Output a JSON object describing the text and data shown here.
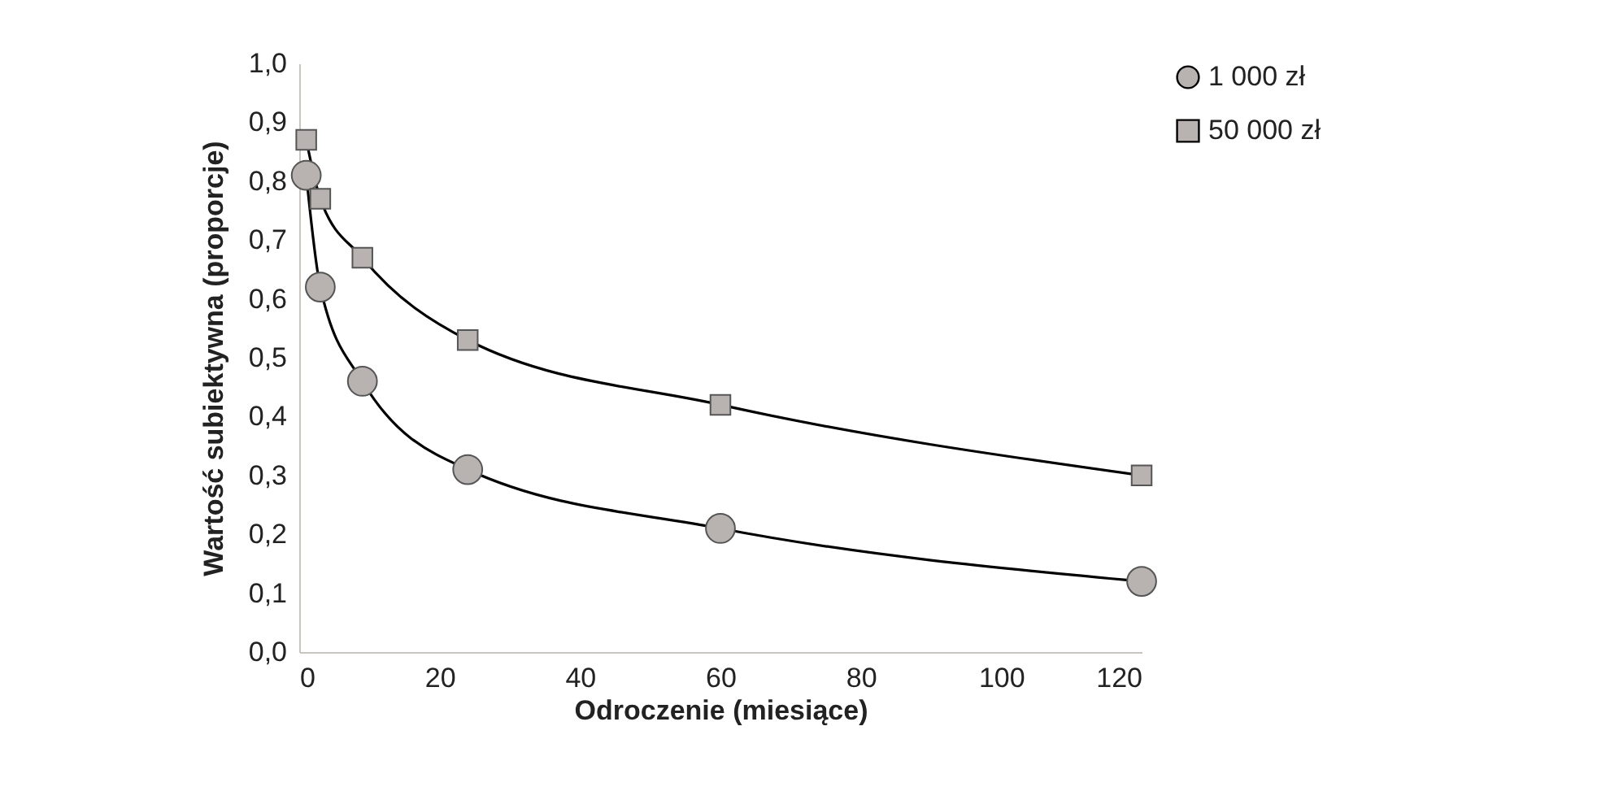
{
  "chart_data": {
    "type": "line",
    "xlabel": "Odroczenie (miesiące)",
    "ylabel": "Wartość subiektywna (proporcje)",
    "x": [
      1,
      3,
      9,
      24,
      60,
      120
    ],
    "series": [
      {
        "name": "1 000 zł",
        "color": "#b8b3b0",
        "marker": "circle",
        "values": [
          0.81,
          0.62,
          0.46,
          0.31,
          0.21,
          0.12
        ]
      },
      {
        "name": "50 000 zł",
        "color": "#b8b3b0",
        "marker": "square",
        "values": [
          0.87,
          0.77,
          0.67,
          0.53,
          0.42,
          0.3
        ]
      }
    ],
    "xlim": [
      0,
      120
    ],
    "xticks": [
      0,
      20,
      40,
      60,
      80,
      100,
      120
    ],
    "ylim": [
      0,
      1
    ],
    "yticks": [
      {
        "value": 0,
        "label": "0,0"
      },
      {
        "value": 0.1,
        "label": "0,1"
      },
      {
        "value": 0.2,
        "label": "0,2"
      },
      {
        "value": 0.3,
        "label": "0,3"
      },
      {
        "value": 0.4,
        "label": "0,4"
      },
      {
        "value": 0.5,
        "label": "0,5"
      },
      {
        "value": 0.6,
        "label": "0,6"
      },
      {
        "value": 0.7,
        "label": "0,7"
      },
      {
        "value": 0.8,
        "label": "0,8"
      },
      {
        "value": 0.9,
        "label": "0,9"
      },
      {
        "value": 1,
        "label": "1,0"
      }
    ],
    "grid": false,
    "legend": "right",
    "line_style": "solid"
  }
}
